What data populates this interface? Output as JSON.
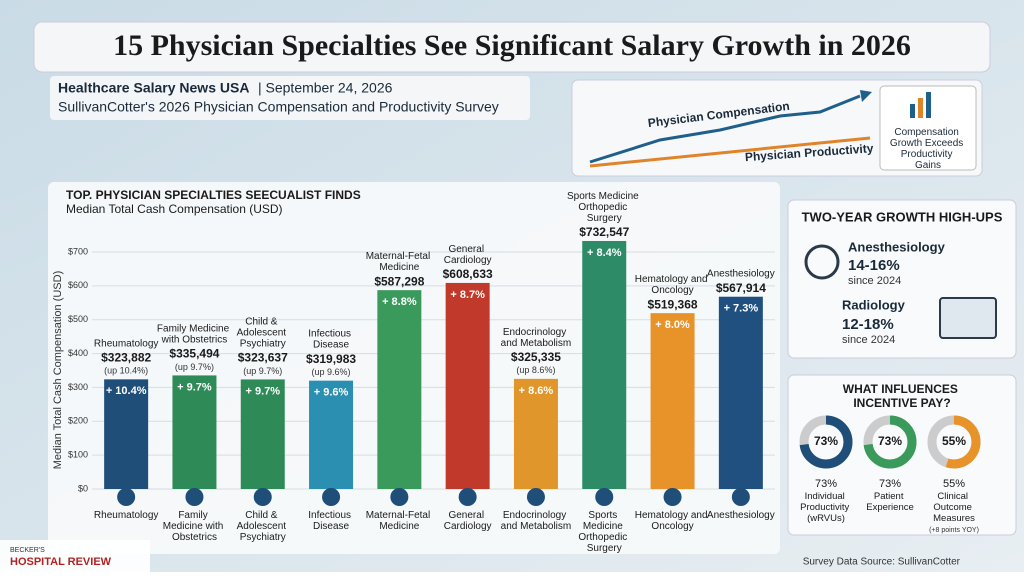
{
  "header": {
    "title": "15 Physician Specialties See Significant Salary Growth in 2026",
    "source": "Healthcare Salary News USA",
    "date": "| September 24, 2026",
    "survey": "SullivanCotter's 2026 Physician Compensation and Productivity Survey"
  },
  "trend": {
    "compensation": "Physician Compensation",
    "productivity": "Physician Productivity",
    "callout": "Compensation Growth Exceeds Productivity Gains"
  },
  "chart_data": {
    "type": "bar",
    "title": "TOP. PHYSICIAN SPECIALTIES SEECUALIST FINDS",
    "subtitle": "Median Total Cash Compensation (USD)",
    "y_label": "Median Total Cash Compensation (USD)",
    "categories": [
      "Rheumatology",
      "Family Medicine with Obstetrics",
      "Child & Adolescent Psychiatry",
      "Infectious Disease",
      "Maternal-Fetal Medicine",
      "General Cardiology",
      "Endocrinology and Metabolism",
      "Sports Medicine Orthopedic Surgery",
      "Hematology and Oncology",
      "Anesthesiology"
    ],
    "values": [
      323.882,
      335.494,
      323.637,
      319.983,
      587.298,
      608.633,
      325.335,
      732.547,
      519.368,
      567.914
    ],
    "value_labels": [
      "$323,882",
      "$335,494",
      "$323,637",
      "$319,983",
      "$587,298",
      "$608,633",
      "$325,335",
      "$732,547",
      "$519,368",
      "$567,914"
    ],
    "growth_labels": [
      "+ 10.4%",
      "+ 9.7%",
      "+ 9.7%",
      "+ 9.6%",
      "+ 8.8%",
      "+ 8.7%",
      "+ 8.6%",
      "+ 8.4%",
      "+ 8.0%",
      "+ 7.3%"
    ],
    "growth_notes": [
      "(up 10.4%)",
      "(up 9.7%)",
      "(up 9.7%)",
      "(up 9.6%)",
      null,
      null,
      "(up 8.6%)",
      null,
      null,
      null
    ],
    "colors": [
      "#1f4e79",
      "#2e8b57",
      "#2e8b57",
      "#2a8fb0",
      "#3a9a5b",
      "#c0392b",
      "#e0962a",
      "#2e8b67",
      "#e8922a",
      "#1f5080"
    ],
    "ylim": [
      0,
      700
    ],
    "yticks": [
      {
        "value": 0,
        "label": "$0"
      },
      {
        "value": 100,
        "label": "$100"
      },
      {
        "value": 200,
        "label": "$200"
      },
      {
        "value": 300,
        "label": "$300"
      },
      {
        "value": 400,
        "label": "$400"
      },
      {
        "value": 500,
        "label": "$500"
      },
      {
        "value": 600,
        "label": "$600"
      },
      {
        "value": 700,
        "label": "$700"
      }
    ],
    "grid": true
  },
  "growth": {
    "title": "TWO-YEAR GROWTH HIGH-UPS",
    "items": [
      {
        "name": "Anesthesiology",
        "range": "14-16%",
        "since": "since 2024"
      },
      {
        "name": "Radiology",
        "range": "12-18%",
        "since": "since 2024"
      }
    ]
  },
  "incentive": {
    "type": "donut",
    "title": "WHAT INFLUENCES INCENTIVE PAY?",
    "values": [
      73,
      73,
      55
    ],
    "value_labels": [
      "73%",
      "73%",
      "55%"
    ],
    "labels": [
      "Individual Productivity (wRVUs)",
      "Patient Experience",
      "Clinical Outcome Measures"
    ],
    "note": "(+8 points YOY)",
    "colors": [
      "#1f4e79",
      "#3a9a5b",
      "#e8922a"
    ]
  },
  "footer": {
    "brand_small": "BECKER'S",
    "brand": "HOSPITAL REVIEW",
    "source": "Survey Data Source: SullivanCotter"
  }
}
